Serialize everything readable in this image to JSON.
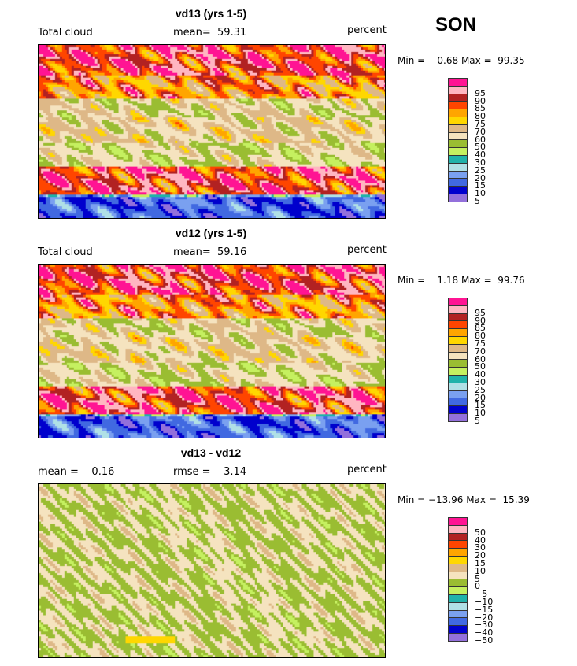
{
  "season": "SON",
  "colors": [
    "#9370db",
    "#0000cd",
    "#4169e1",
    "#7aa0f0",
    "#b0e0e6",
    "#20b2aa",
    "#c5f060",
    "#9abd32",
    "#f5e3bf",
    "#deb887",
    "#ffd700",
    "#ffa500",
    "#ff4500",
    "#b22222",
    "#ffb6c1",
    "#ff1493"
  ],
  "panels": [
    {
      "title": "vd13 (yrs 1-5)",
      "left": "Total cloud",
      "middle": "mean=  59.31",
      "right": "percent",
      "minmax": "Min =    0.68 Max =  99.35",
      "levels": [
        "5",
        "10",
        "15",
        "20",
        "25",
        "30",
        "40",
        "50",
        "60",
        "70",
        "75",
        "80",
        "85",
        "90",
        "95"
      ],
      "field": "a"
    },
    {
      "title": "vd12 (yrs 1-5)",
      "left": "Total cloud",
      "middle": "mean=  59.16",
      "right": "percent",
      "minmax": "Min =    1.18 Max =  99.76",
      "levels": [
        "5",
        "10",
        "15",
        "20",
        "25",
        "30",
        "40",
        "50",
        "60",
        "70",
        "75",
        "80",
        "85",
        "90",
        "95"
      ],
      "field": "b"
    },
    {
      "title": "vd13 - vd12",
      "left": "mean =    0.16",
      "middle": "rmse =    3.14",
      "right": "percent",
      "minmax": "Min = −13.96 Max =  15.39",
      "levels": [
        "−50",
        "−40",
        "−30",
        "−20",
        "−15",
        "−10",
        "−5",
        "0",
        "5",
        "10",
        "15",
        "20",
        "30",
        "40",
        "50"
      ],
      "field": "d"
    }
  ]
}
